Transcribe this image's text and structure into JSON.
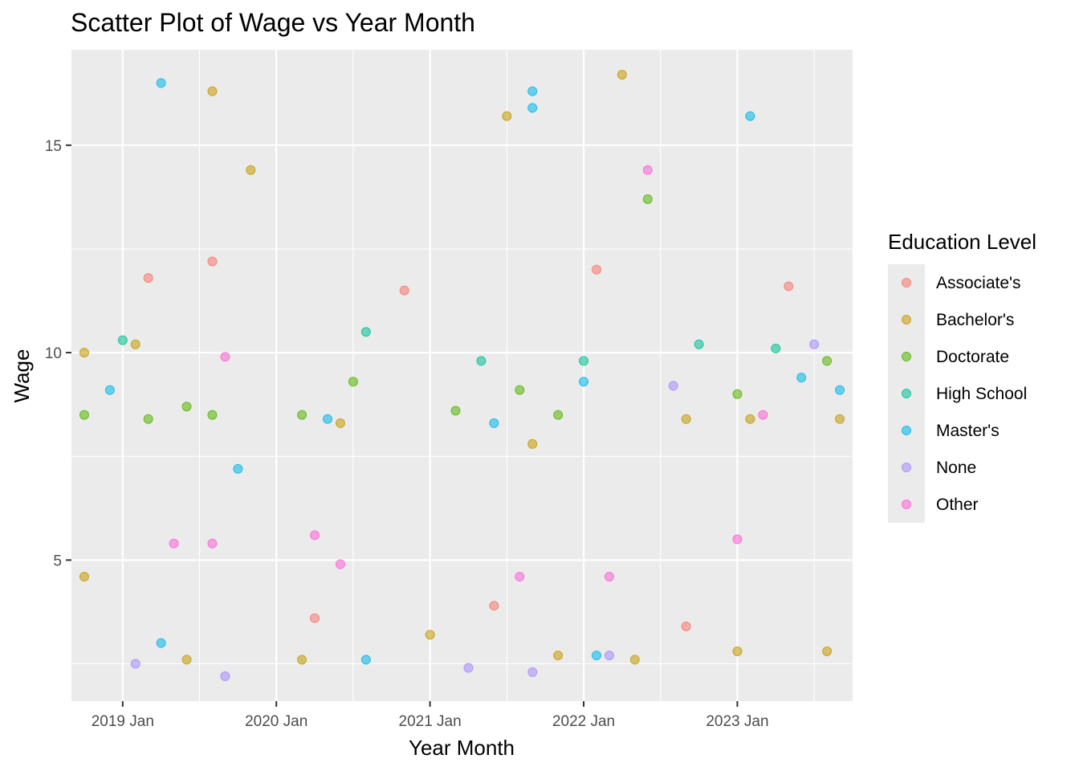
{
  "chart_data": {
    "type": "scatter",
    "title": "Scatter Plot of Wage vs Year Month",
    "xlabel": "Year Month",
    "ylabel": "Wage",
    "x_ticks": [
      "2019 Jan",
      "2020 Jan",
      "2021 Jan",
      "2022 Jan",
      "2023 Jan"
    ],
    "x_tick_dates": [
      "2019-01",
      "2020-01",
      "2021-01",
      "2022-01",
      "2023-01"
    ],
    "xlim": [
      "2018-09",
      "2023-10"
    ],
    "y_ticks": [
      5,
      10,
      15
    ],
    "ylim": [
      1.6,
      17.3
    ],
    "grid": true,
    "legend": {
      "title": "Education Level",
      "position": "right",
      "items": [
        "Associate's",
        "Bachelor's",
        "Doctorate",
        "High School",
        "Master's",
        "None",
        "Other"
      ]
    },
    "colors": {
      "Associate's": "#F8766D",
      "Bachelor's": "#C49A00",
      "Doctorate": "#53B400",
      "High School": "#00C094",
      "Master's": "#00B6EB",
      "None": "#A58AFF",
      "Other": "#FB61D7"
    },
    "series": [
      {
        "name": "Associate's",
        "x": [
          "2019-03",
          "2019-08",
          "2020-04",
          "2020-11",
          "2021-06",
          "2022-02",
          "2022-09",
          "2023-05"
        ],
        "y": [
          11.8,
          12.2,
          3.6,
          11.5,
          3.9,
          12.0,
          3.4,
          11.6
        ]
      },
      {
        "name": "Bachelor's",
        "x": [
          "2019-08",
          "2021-07",
          "2022-04",
          "2019-11",
          "2021-09",
          "2018-10",
          "2019-02",
          "2020-06",
          "2022-09",
          "2023-02",
          "2023-09",
          "2018-10",
          "2019-06",
          "2020-03",
          "2021-01",
          "2021-11",
          "2022-05",
          "2023-01",
          "2023-08"
        ],
        "y": [
          16.3,
          15.7,
          16.7,
          14.4,
          7.8,
          10.0,
          10.2,
          8.3,
          8.4,
          8.4,
          8.4,
          4.6,
          2.6,
          2.6,
          3.2,
          2.7,
          2.6,
          2.8,
          2.8
        ]
      },
      {
        "name": "Doctorate",
        "x": [
          "2018-10",
          "2019-03",
          "2019-06",
          "2019-08",
          "2020-03",
          "2020-07",
          "2021-03",
          "2021-08",
          "2021-11",
          "2022-06",
          "2023-01",
          "2023-08"
        ],
        "y": [
          8.5,
          8.4,
          8.7,
          8.5,
          8.5,
          9.3,
          8.6,
          9.1,
          8.5,
          13.7,
          9.0,
          9.8
        ]
      },
      {
        "name": "High School",
        "x": [
          "2019-01",
          "2020-08",
          "2021-05",
          "2022-01",
          "2022-10",
          "2023-04"
        ],
        "y": [
          10.3,
          10.5,
          9.8,
          9.8,
          10.2,
          10.1
        ]
      },
      {
        "name": "Master's",
        "x": [
          "2019-04",
          "2021-09",
          "2021-09",
          "2023-02",
          "2018-12",
          "2019-10",
          "2020-05",
          "2021-06",
          "2022-01",
          "2023-06",
          "2023-09",
          "2019-04",
          "2020-08",
          "2022-02"
        ],
        "y": [
          16.5,
          16.3,
          15.9,
          15.7,
          9.1,
          7.2,
          8.4,
          8.3,
          9.3,
          9.4,
          9.1,
          3.0,
          2.6,
          2.7
        ]
      },
      {
        "name": "None",
        "x": [
          "2019-02",
          "2019-09",
          "2021-04",
          "2021-09",
          "2022-03",
          "2022-08",
          "2023-07"
        ],
        "y": [
          2.5,
          2.2,
          2.4,
          2.3,
          2.7,
          9.2,
          10.2
        ]
      },
      {
        "name": "Other",
        "x": [
          "2022-06",
          "2019-09",
          "2020-06",
          "2023-01",
          "2023-03",
          "2020-04",
          "2019-05",
          "2019-08",
          "2021-08",
          "2022-03"
        ],
        "y": [
          14.4,
          9.9,
          4.9,
          5.5,
          8.5,
          5.6,
          5.4,
          5.4,
          4.6,
          4.6
        ]
      }
    ]
  }
}
